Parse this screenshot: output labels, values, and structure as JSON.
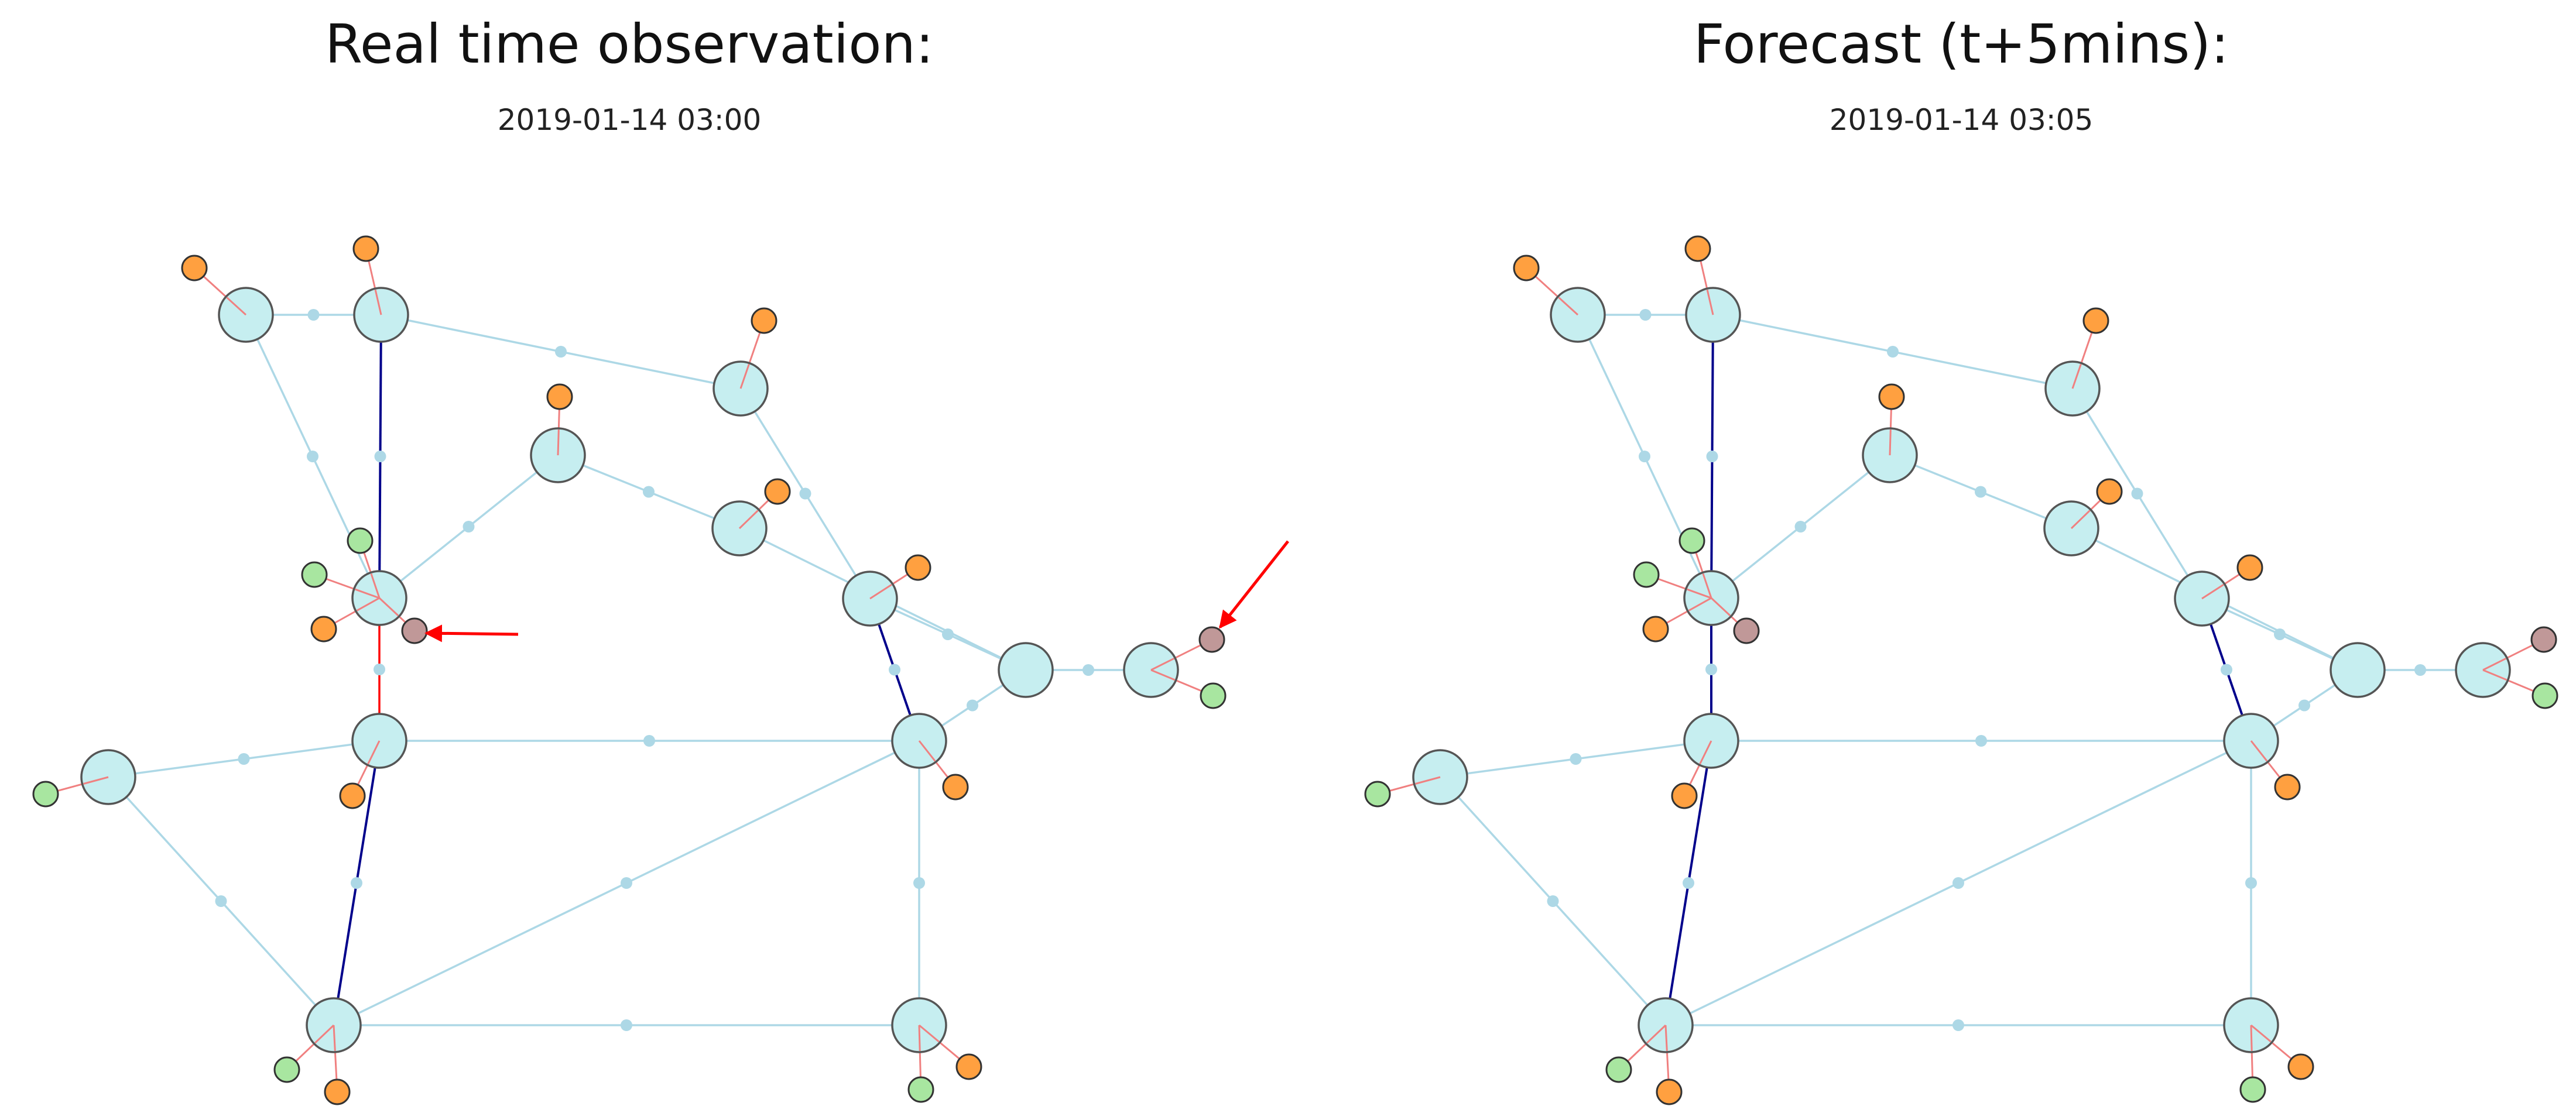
{
  "panels": [
    {
      "title": "Real time observation:",
      "timestamp": "2019-01-14 03:00",
      "annotations": [
        "arrow-to-gen-5",
        "arrow-to-gen-19"
      ],
      "line_status": {
        "L4-5": "overloaded",
        "L5-6": "warning",
        "L1-5": "heavy",
        "L4-6": "heavy",
        "L5-7": "heavy",
        "L6-10": "heavy"
      }
    },
    {
      "title": "Forecast (t+5mins):",
      "timestamp": "2019-01-14 03:05",
      "annotations": [],
      "line_status": {
        "L4-5": "heavy",
        "L5-6": "normal",
        "L1-5": "heavy",
        "L4-6": "heavy",
        "L5-7": "heavy",
        "L6-10": "heavy"
      }
    }
  ],
  "colors": {
    "substation_fill": "#c6eef0",
    "substation_stroke": "#555555",
    "line_normal": "#add8e6",
    "line_heavy": "#00008b",
    "line_warning": "#ffa500",
    "line_overloaded": "#ff0000",
    "load": "#ffa040",
    "generator": "#a8e6a0",
    "disconnected": "#c09898",
    "branch": "#f08080",
    "arrow": "#ff0000"
  }
}
